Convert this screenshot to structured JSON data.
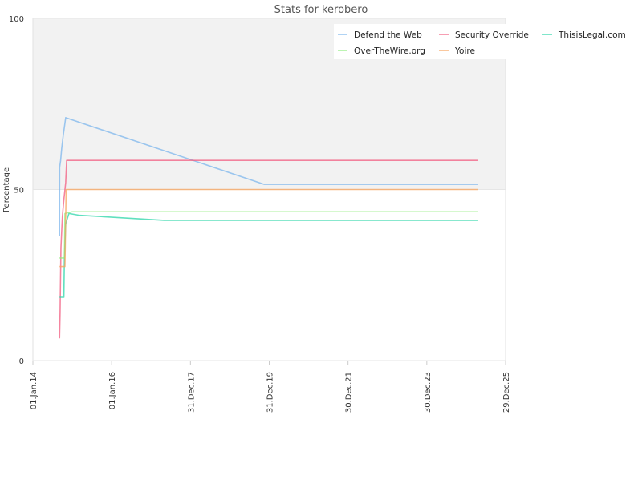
{
  "chart_data": {
    "type": "line",
    "title": "Stats for kerobero",
    "xlabel": "",
    "ylabel": "Percentage",
    "ylim": [
      0,
      100
    ],
    "xlim": [
      "2014-01-01",
      "2025-12-29"
    ],
    "yticks": [
      0,
      50,
      100
    ],
    "xticks": [
      {
        "date": "2014-01-01",
        "label": "01.Jan.14"
      },
      {
        "date": "2016-01-01",
        "label": "01.Jan.16"
      },
      {
        "date": "2017-12-31",
        "label": "31.Dec.17"
      },
      {
        "date": "2019-12-31",
        "label": "31.Dec.19"
      },
      {
        "date": "2021-12-30",
        "label": "30.Dec.21"
      },
      {
        "date": "2023-12-30",
        "label": "30.Dec.23"
      },
      {
        "date": "2025-12-29",
        "label": "29.Dec.25"
      }
    ],
    "shaded_band": [
      50,
      100
    ],
    "legend_position": "top-right",
    "series": [
      {
        "name": "Defend the Web",
        "color": "#7cb5ec",
        "points": [
          [
            "2014-09-05",
            36.5
          ],
          [
            "2014-09-06",
            56.5
          ],
          [
            "2014-09-15",
            58.5
          ],
          [
            "2014-09-25",
            62.0
          ],
          [
            "2014-10-10",
            66.0
          ],
          [
            "2014-11-01",
            71.0
          ],
          [
            "2019-11-15",
            51.5
          ],
          [
            "2025-04-20",
            51.5
          ]
        ]
      },
      {
        "name": "Security Override",
        "color": "#f15c80",
        "points": [
          [
            "2014-09-05",
            6.5
          ],
          [
            "2014-09-10",
            14.0
          ],
          [
            "2014-09-18",
            33.0
          ],
          [
            "2014-10-01",
            42.0
          ],
          [
            "2014-10-15",
            47.0
          ],
          [
            "2014-11-01",
            52.0
          ],
          [
            "2014-11-10",
            58.5
          ],
          [
            "2025-04-20",
            58.5
          ]
        ]
      },
      {
        "name": "ThisisLegal.com",
        "color": "#2bd6a8",
        "points": [
          [
            "2014-09-05",
            18.5
          ],
          [
            "2014-10-15",
            18.5
          ],
          [
            "2014-10-20",
            30.0
          ],
          [
            "2014-11-01",
            40.0
          ],
          [
            "2014-12-01",
            43.0
          ],
          [
            "2015-03-01",
            42.5
          ],
          [
            "2017-05-01",
            41.0
          ],
          [
            "2025-04-20",
            41.0
          ]
        ]
      },
      {
        "name": "OverTheWire.org",
        "color": "#90ed7d",
        "points": [
          [
            "2014-09-05",
            30.0
          ],
          [
            "2014-10-20",
            30.0
          ],
          [
            "2014-10-25",
            43.0
          ],
          [
            "2015-01-01",
            43.5
          ],
          [
            "2025-04-20",
            43.5
          ]
        ]
      },
      {
        "name": "Yoire",
        "color": "#f7a35c",
        "points": [
          [
            "2014-09-05",
            27.5
          ],
          [
            "2014-10-25",
            27.5
          ],
          [
            "2014-11-05",
            50.0
          ],
          [
            "2025-04-20",
            50.0
          ]
        ]
      }
    ]
  }
}
